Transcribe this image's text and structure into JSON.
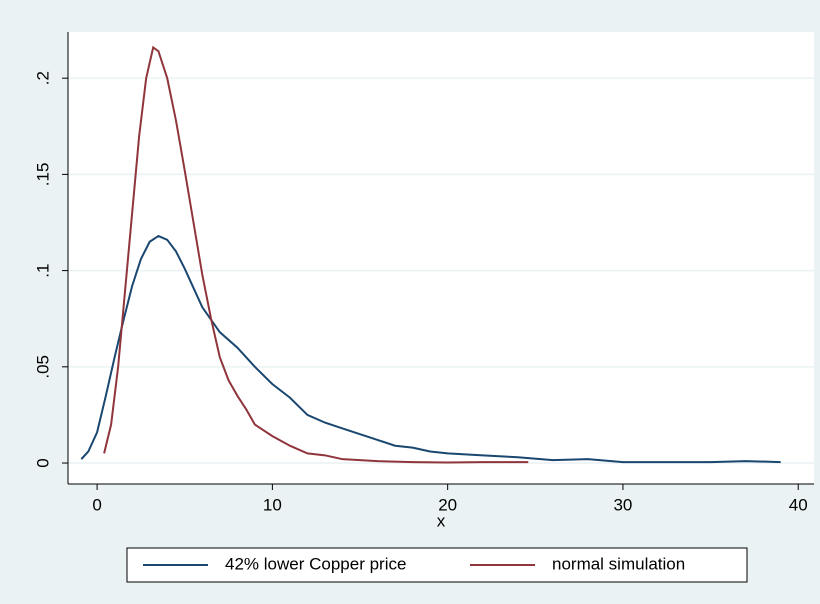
{
  "chart_data": {
    "type": "line",
    "xlabel": "x",
    "xlim": [
      -1.66,
      40.9
    ],
    "xticks": [
      0,
      10,
      20,
      30,
      40
    ],
    "ylim": [
      -0.0109,
      0.224
    ],
    "yticks": [
      0,
      {
        "value": 0.05,
        "label": ".05"
      },
      {
        "value": 0.1,
        "label": ".1"
      },
      {
        "value": 0.15,
        "label": ".15"
      },
      {
        "value": 0.2,
        "label": ".2"
      }
    ],
    "grid": true,
    "legend": "bottom",
    "series": [
      {
        "name": "42% lower Copper price",
        "color": "#1a476f",
        "x": [
          -0.9,
          -0.5,
          0,
          0.5,
          1,
          1.5,
          2,
          2.5,
          3,
          3.5,
          4,
          4.5,
          5,
          5.5,
          6,
          7,
          8,
          9,
          10,
          11,
          12,
          13,
          14,
          15,
          16,
          17,
          18,
          19,
          20,
          22,
          24,
          26,
          28,
          30,
          35,
          37,
          39
        ],
        "values": [
          0.002,
          0.006,
          0.016,
          0.035,
          0.055,
          0.074,
          0.092,
          0.106,
          0.115,
          0.118,
          0.116,
          0.11,
          0.101,
          0.091,
          0.081,
          0.068,
          0.06,
          0.05,
          0.041,
          0.034,
          0.025,
          0.021,
          0.018,
          0.015,
          0.012,
          0.009,
          0.008,
          0.006,
          0.005,
          0.004,
          0.003,
          0.0015,
          0.002,
          0.0005,
          0.0005,
          0.001,
          0.0005
        ]
      },
      {
        "name": "normal simulation",
        "color": "#90353b",
        "x": [
          0.4,
          0.8,
          1.2,
          1.6,
          2,
          2.4,
          2.8,
          3.2,
          3.5,
          4,
          4.5,
          5,
          5.5,
          6,
          6.5,
          7,
          7.5,
          8,
          8.5,
          9,
          10,
          11,
          12,
          13,
          14,
          15,
          16,
          18,
          20,
          22,
          24.6
        ],
        "values": [
          0.005,
          0.02,
          0.05,
          0.09,
          0.13,
          0.17,
          0.2,
          0.216,
          0.214,
          0.2,
          0.178,
          0.152,
          0.125,
          0.098,
          0.075,
          0.055,
          0.043,
          0.035,
          0.028,
          0.02,
          0.014,
          0.009,
          0.005,
          0.004,
          0.002,
          0.0015,
          0.001,
          0.0005,
          0.0003,
          0.0005,
          0.0005
        ]
      }
    ]
  }
}
